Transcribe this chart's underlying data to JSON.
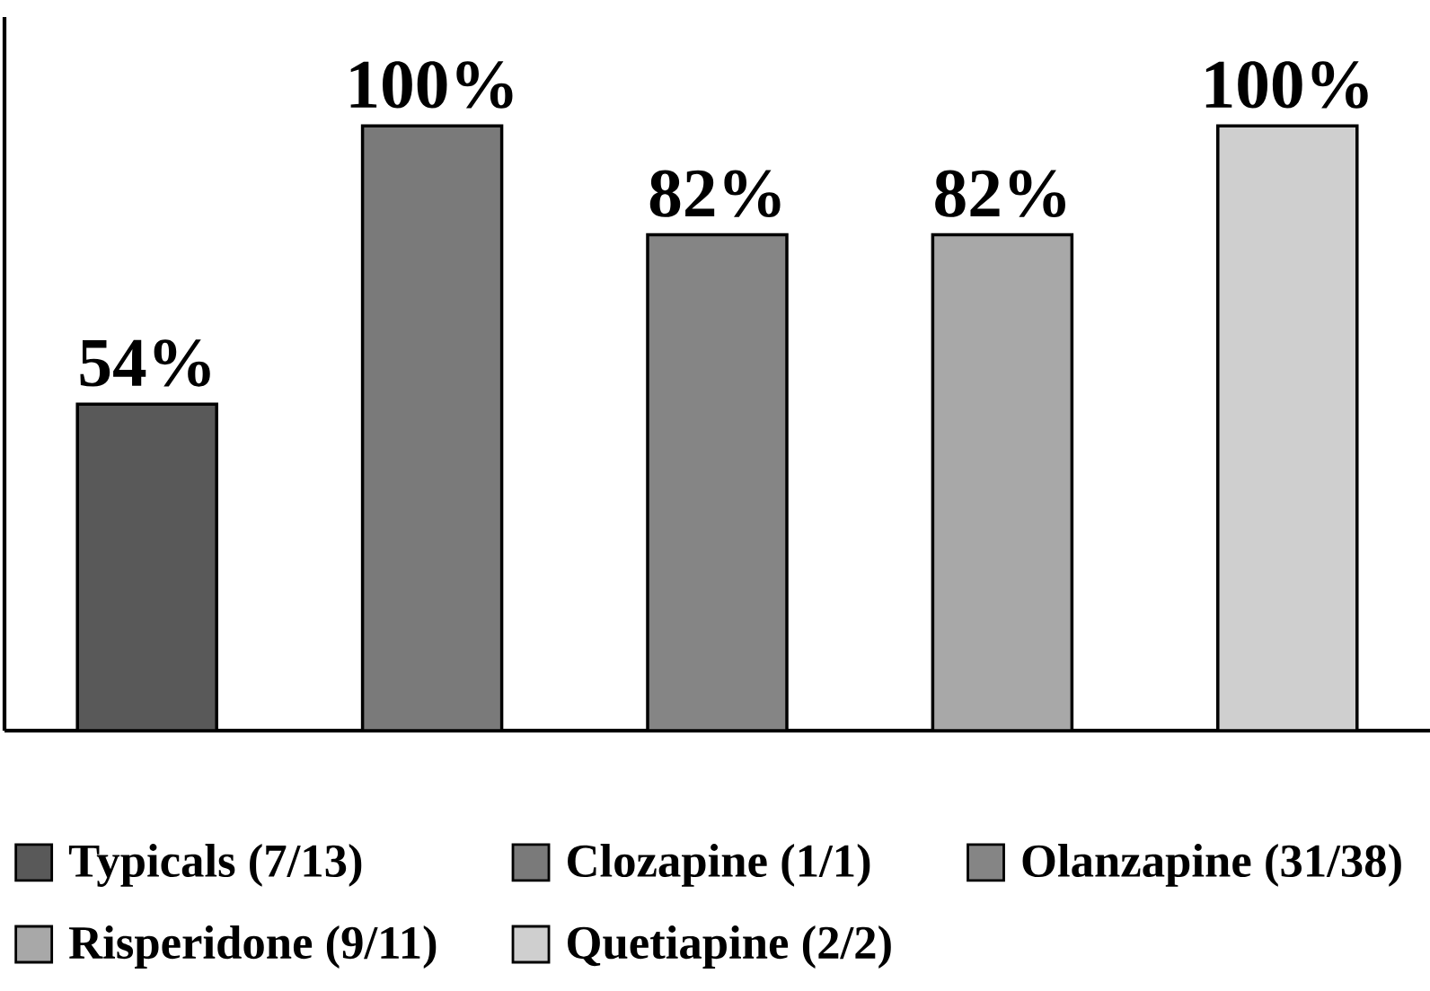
{
  "chart_data": {
    "type": "bar",
    "categories": [
      null,
      null,
      null,
      null,
      null
    ],
    "series": [
      {
        "name": "Typicals (7/13)",
        "color": "#595959",
        "values": [
          54,
          null,
          null,
          null,
          null
        ],
        "value_labels": [
          "54%",
          null,
          null,
          null,
          null
        ]
      },
      {
        "name": "Clozapine (1/1)",
        "color": "#7a7a7a",
        "values": [
          null,
          100,
          null,
          null,
          null
        ],
        "value_labels": [
          null,
          "100%",
          null,
          null,
          null
        ]
      },
      {
        "name": "Olanzapine (31/38)",
        "color": "#858585",
        "values": [
          null,
          null,
          82,
          null,
          null
        ],
        "value_labels": [
          null,
          null,
          "82%",
          null,
          null
        ]
      },
      {
        "name": "Risperidone (9/11)",
        "color": "#a8a8a8",
        "values": [
          null,
          null,
          null,
          82,
          null
        ],
        "value_labels": [
          null,
          null,
          null,
          "82%",
          null
        ]
      },
      {
        "name": "Quetiapine (2/2)",
        "color": "#cfcfcf",
        "values": [
          null,
          null,
          null,
          null,
          100
        ],
        "value_labels": [
          null,
          null,
          null,
          null,
          "100%"
        ]
      }
    ],
    "stacked": true,
    "legend": "bottom"
  }
}
